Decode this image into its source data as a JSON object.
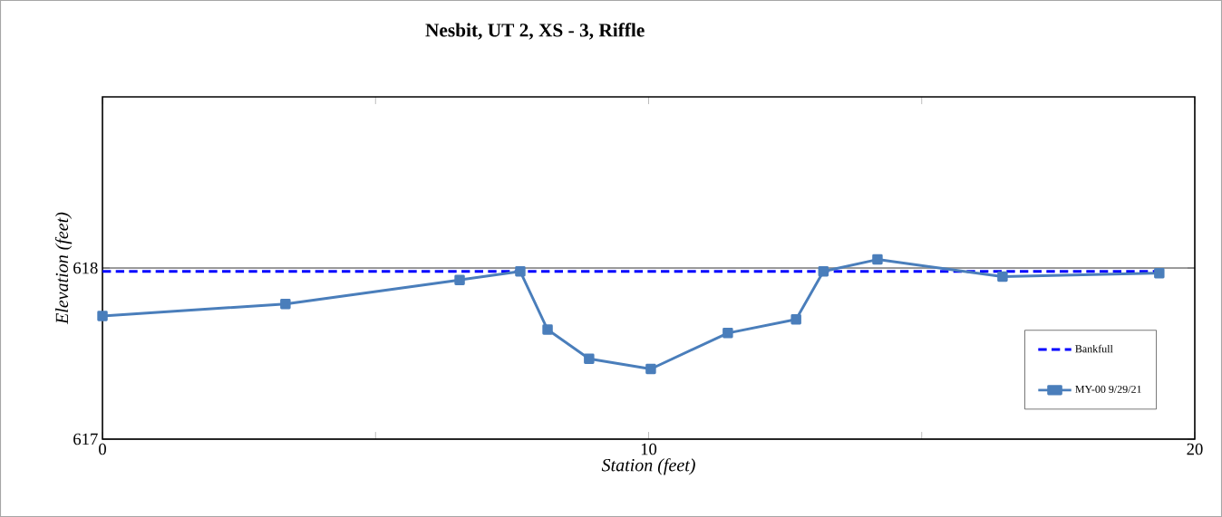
{
  "chart_data": {
    "type": "line",
    "title": "Nesbit, UT 2, XS - 3, Riffle",
    "xlabel": "Station (feet)",
    "ylabel": "Elevation (feet)",
    "xlim": [
      0,
      20
    ],
    "ylim": [
      617,
      619
    ],
    "xticks": [
      0,
      {
        "value": 5,
        "label": null
      },
      10,
      {
        "value": 15,
        "label": null
      },
      20
    ],
    "yticks": [
      617,
      618
    ],
    "grid": "y",
    "legend": "bottom right",
    "series": [
      {
        "name": "Bankfull",
        "color": "#0000ff",
        "line_style": "dashed",
        "marker": "none",
        "x": [
          0,
          19.35
        ],
        "values": [
          617.98,
          617.98
        ]
      },
      {
        "name": "MY-00 9/29/21",
        "color": "#4a7ebb",
        "line_style": "solid",
        "marker": "square",
        "x": [
          0,
          3.35,
          6.54,
          7.65,
          8.15,
          8.91,
          10.04,
          11.45,
          12.7,
          13.2,
          14.19,
          16.48,
          19.35
        ],
        "values": [
          617.72,
          617.79,
          617.93,
          617.98,
          617.64,
          617.47,
          617.41,
          617.62,
          617.7,
          617.98,
          618.05,
          617.95,
          617.97
        ]
      }
    ]
  }
}
